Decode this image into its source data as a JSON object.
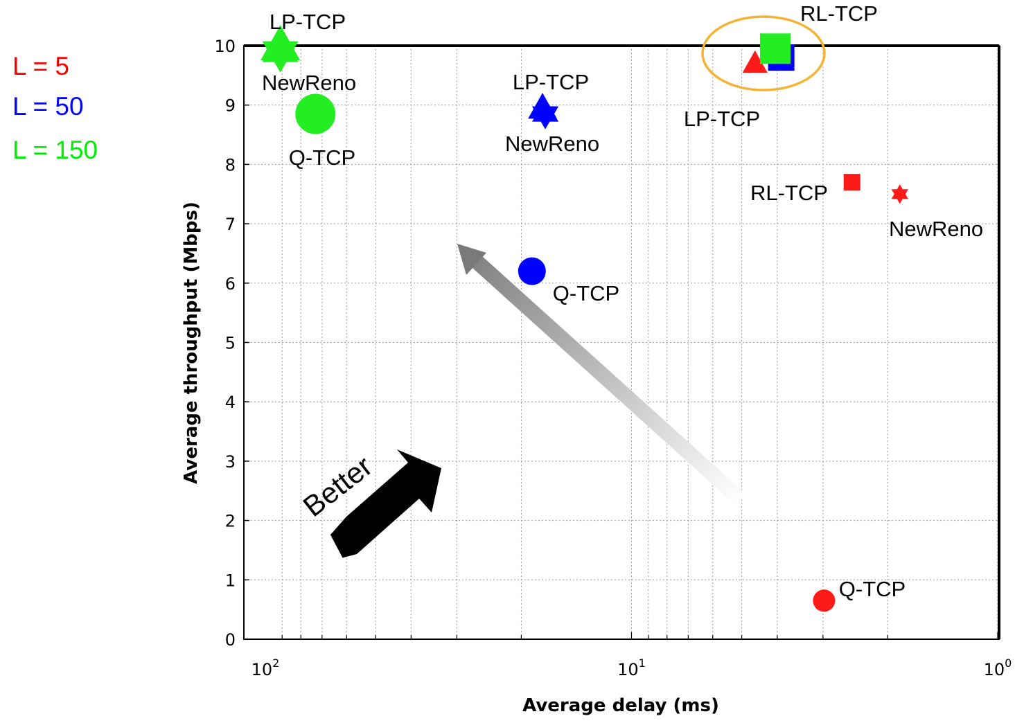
{
  "chart_data": {
    "type": "scatter",
    "title": "",
    "xlabel": "Average delay (ms)",
    "ylabel": "Average throughput (Mbps)",
    "x_scale": "log",
    "x_reversed": true,
    "xlim": [
      100,
      1
    ],
    "ylim": [
      0,
      10
    ],
    "x_ticks": [
      {
        "value": 100,
        "base": "10",
        "exp": "2"
      },
      {
        "value": 10,
        "base": "10",
        "exp": "1"
      },
      {
        "value": 1,
        "base": "10",
        "exp": "0"
      }
    ],
    "y_ticks": [
      "0",
      "1",
      "2",
      "3",
      "4",
      "5",
      "6",
      "7",
      "8",
      "9",
      "10"
    ],
    "grid": true,
    "legend": {
      "placement": "top-left, outside plot",
      "entries": [
        {
          "label": "L = 5",
          "color": "#ff0000"
        },
        {
          "label": "L = 50",
          "color": "#0000ff"
        },
        {
          "label": "L = 150",
          "color": "#00ee00"
        }
      ]
    },
    "series": [
      {
        "name": "L = 5",
        "color": "#ff1a1a",
        "points": [
          {
            "label": "LP-TCP",
            "marker": "triangle",
            "x": 4.6,
            "y": 9.7
          },
          {
            "label": "RL-TCP",
            "marker": "square",
            "x": 2.5,
            "y": 7.7
          },
          {
            "label": "NewReno",
            "marker": "hexagram",
            "x": 1.85,
            "y": 7.5
          },
          {
            "label": "Q-TCP",
            "marker": "circle",
            "x": 2.98,
            "y": 0.65
          }
        ]
      },
      {
        "name": "L = 50",
        "color": "#0000ff",
        "points": [
          {
            "label": "LP-TCP",
            "marker": "triangle",
            "x": 17.5,
            "y": 8.95
          },
          {
            "label": "NewReno",
            "marker": "hexagram",
            "x": 17.2,
            "y": 8.85
          },
          {
            "label": "Q-TCP",
            "marker": "circle",
            "x": 18.7,
            "y": 6.2
          },
          {
            "label": "RL-TCP",
            "marker": "square",
            "x": 3.9,
            "y": 9.8
          }
        ]
      },
      {
        "name": "L = 150",
        "color": "#22ee22",
        "points": [
          {
            "label": "LP-TCP",
            "marker": "triangle",
            "x": 91,
            "y": 10.0
          },
          {
            "label": "NewReno",
            "marker": "hexagram",
            "x": 91,
            "y": 9.9
          },
          {
            "label": "Q-TCP",
            "marker": "circle",
            "x": 73,
            "y": 8.85
          },
          {
            "label": "RL-TCP",
            "marker": "square",
            "x": 4.05,
            "y": 9.95
          }
        ]
      }
    ],
    "annotations": [
      {
        "text": "LP-TCP",
        "near": "L = 150 LP-TCP"
      },
      {
        "text": "NewReno",
        "near": "L = 150 NewReno"
      },
      {
        "text": "Q-TCP",
        "near": "L = 150 Q-TCP"
      },
      {
        "text": "LP-TCP",
        "near": "L = 50 LP-TCP"
      },
      {
        "text": "NewReno",
        "near": "L = 50 NewReno"
      },
      {
        "text": "Q-TCP",
        "near": "L = 50 Q-TCP"
      },
      {
        "text": "RL-TCP",
        "near": "RL-TCP cluster (circled)"
      },
      {
        "text": "LP-TCP",
        "near": "L = 5 LP-TCP"
      },
      {
        "text": "RL-TCP",
        "near": "L = 5 RL-TCP"
      },
      {
        "text": "NewReno",
        "near": "L = 5 NewReno"
      },
      {
        "text": "Q-TCP",
        "near": "L = 5 Q-TCP"
      },
      {
        "text": "Better",
        "near": "black arrow, bottom-left"
      }
    ],
    "colors": {
      "highlight_ellipse": "#f5b335",
      "better_arrow": "#000000",
      "trend_arrow": "#888888"
    }
  }
}
